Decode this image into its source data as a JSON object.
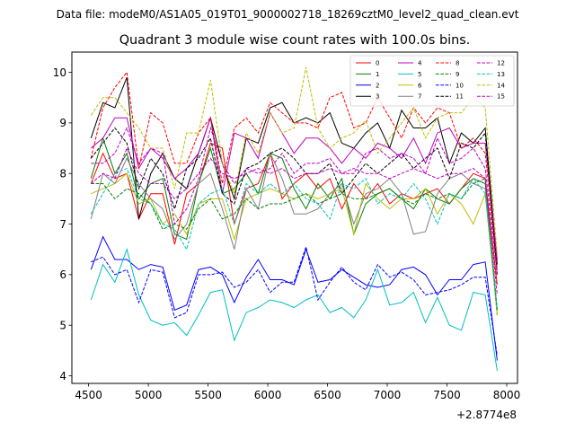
{
  "chart_data": {
    "type": "line",
    "suptitle": "Data file: modeM0/AS1A05_019T01_9000002718_18269cztM0_level2_quad_clean.evt",
    "title": "Quadrant 3 module wise count rates with 100.0s bins.",
    "xlabel": "",
    "ylabel": "",
    "x_offset_label": "+2.8774e8",
    "xlim": [
      4360,
      8090
    ],
    "ylim": [
      3.85,
      10.4
    ],
    "xticks": [
      4500,
      5000,
      5500,
      6000,
      6500,
      7000,
      7500,
      8000
    ],
    "yticks": [
      4,
      5,
      6,
      7,
      8,
      9,
      10
    ],
    "x": [
      4520,
      4620,
      4720,
      4820,
      4920,
      5020,
      5120,
      5220,
      5320,
      5420,
      5520,
      5620,
      5720,
      5820,
      5920,
      6020,
      6120,
      6220,
      6320,
      6420,
      6520,
      6620,
      6720,
      6820,
      6920,
      7020,
      7120,
      7220,
      7320,
      7420,
      7520,
      7620,
      7720,
      7820,
      7920
    ],
    "series": [
      {
        "name": "0",
        "color": "#ff0000",
        "dash": false,
        "values": [
          7.8,
          8.4,
          7.9,
          8.0,
          7.1,
          7.6,
          7.6,
          6.6,
          7.6,
          7.8,
          8.6,
          8.5,
          7.0,
          7.7,
          7.8,
          8.4,
          7.5,
          7.8,
          8.0,
          7.7,
          7.9,
          7.3,
          7.8,
          7.5,
          7.8,
          7.4,
          7.6,
          7.5,
          7.6,
          7.7,
          7.4,
          7.7,
          8.0,
          7.9,
          5.8
        ]
      },
      {
        "name": "1",
        "color": "#008000",
        "dash": false,
        "values": [
          7.9,
          8.7,
          8.0,
          8.4,
          7.5,
          7.8,
          7.9,
          6.8,
          6.7,
          7.8,
          8.5,
          7.6,
          7.7,
          8.0,
          7.6,
          8.4,
          8.3,
          7.7,
          7.3,
          7.8,
          7.5,
          7.9,
          6.8,
          7.4,
          7.6,
          7.7,
          7.5,
          7.3,
          7.7,
          7.5,
          7.4,
          7.7,
          7.9,
          7.8,
          5.2
        ]
      },
      {
        "name": "2",
        "color": "#0000ff",
        "dash": false,
        "values": [
          6.1,
          6.75,
          6.3,
          6.3,
          6.1,
          6.2,
          6.15,
          5.3,
          5.4,
          6.1,
          6.15,
          6.0,
          5.45,
          5.95,
          6.3,
          5.9,
          5.9,
          5.8,
          6.5,
          5.85,
          5.9,
          6.1,
          5.95,
          5.8,
          5.75,
          5.8,
          6.1,
          6.15,
          6.0,
          5.6,
          5.9,
          5.9,
          6.2,
          6.25,
          4.3
        ]
      },
      {
        "name": "3",
        "color": "#000000",
        "dash": false,
        "values": [
          8.7,
          9.4,
          9.3,
          9.9,
          7.1,
          8.0,
          8.4,
          7.9,
          7.7,
          8.4,
          9.1,
          8.2,
          7.5,
          8.7,
          8.6,
          9.3,
          9.4,
          9.0,
          9.1,
          9.0,
          9.2,
          8.6,
          8.5,
          8.8,
          9.0,
          8.5,
          9.25,
          8.9,
          8.9,
          9.1,
          8.2,
          8.8,
          8.6,
          8.9,
          6.2
        ]
      },
      {
        "name": "4",
        "color": "#bf00bf",
        "dash": false,
        "values": [
          8.5,
          8.7,
          9.1,
          9.1,
          8.1,
          8.5,
          8.3,
          7.9,
          8.1,
          8.4,
          9.1,
          7.6,
          8.8,
          8.7,
          8.3,
          9.2,
          8.8,
          8.4,
          8.7,
          8.7,
          8.5,
          8.2,
          8.5,
          8.3,
          8.6,
          8.5,
          8.3,
          8.7,
          8.2,
          8.8,
          8.9,
          8.5,
          8.6,
          8.6,
          6.3
        ]
      },
      {
        "name": "5",
        "color": "#00bfbf",
        "dash": false,
        "values": [
          5.5,
          6.2,
          5.85,
          6.5,
          5.6,
          5.1,
          5.0,
          5.05,
          4.8,
          5.2,
          5.65,
          5.7,
          4.7,
          5.25,
          5.35,
          5.5,
          5.45,
          5.35,
          5.5,
          5.6,
          5.25,
          5.35,
          5.15,
          5.5,
          6.1,
          5.4,
          5.45,
          5.65,
          5.05,
          5.55,
          5.0,
          4.9,
          5.65,
          5.6,
          4.1
        ]
      },
      {
        "name": "6",
        "color": "#bfbf00",
        "dash": false,
        "values": [
          7.6,
          7.7,
          7.8,
          8.0,
          7.4,
          7.5,
          7.0,
          7.2,
          6.8,
          7.4,
          7.5,
          7.5,
          6.7,
          7.5,
          7.6,
          7.7,
          7.6,
          7.5,
          7.6,
          7.5,
          7.6,
          7.7,
          6.8,
          7.8,
          7.5,
          7.3,
          7.5,
          7.5,
          7.7,
          7.2,
          7.6,
          7.4,
          7.0,
          7.6,
          5.2
        ]
      },
      {
        "name": "7",
        "color": "#808080",
        "dash": false,
        "values": [
          7.1,
          8.0,
          7.8,
          8.3,
          7.8,
          7.5,
          7.3,
          6.7,
          7.0,
          7.8,
          8.0,
          7.3,
          6.5,
          7.7,
          7.3,
          8.4,
          7.9,
          7.2,
          7.2,
          7.3,
          7.6,
          7.8,
          7.0,
          7.6,
          7.7,
          7.9,
          7.6,
          6.8,
          6.85,
          7.6,
          7.9,
          8.0,
          7.8,
          7.7,
          5.3
        ]
      },
      {
        "name": "8",
        "color": "#ff0000",
        "dash": true,
        "values": [
          8.3,
          9.3,
          9.7,
          10.0,
          8.1,
          9.2,
          9.0,
          8.2,
          8.2,
          8.8,
          9.1,
          7.8,
          8.9,
          9.1,
          8.8,
          9.4,
          9.2,
          9.0,
          9.0,
          8.9,
          9.5,
          9.6,
          8.9,
          9.0,
          9.5,
          9.1,
          8.7,
          9.3,
          9.0,
          9.3,
          9.2,
          8.5,
          8.7,
          8.4,
          6.1
        ]
      },
      {
        "name": "9",
        "color": "#008000",
        "dash": true,
        "values": [
          7.8,
          7.8,
          7.5,
          7.7,
          7.6,
          7.4,
          6.9,
          7.0,
          6.9,
          7.3,
          7.5,
          7.1,
          7.2,
          7.5,
          7.3,
          7.4,
          7.4,
          7.5,
          7.6,
          7.4,
          7.5,
          7.6,
          7.5,
          7.5,
          7.6,
          7.7,
          7.5,
          7.4,
          7.6,
          7.5,
          7.6,
          7.5,
          7.8,
          7.9,
          5.3
        ]
      },
      {
        "name": "10",
        "color": "#0000ff",
        "dash": true,
        "values": [
          6.25,
          6.35,
          6.0,
          6.1,
          5.45,
          6.1,
          6.05,
          5.15,
          5.25,
          6.0,
          6.0,
          6.05,
          5.75,
          5.85,
          6.1,
          5.65,
          5.85,
          5.85,
          6.55,
          5.5,
          5.85,
          6.15,
          5.85,
          5.7,
          6.2,
          5.95,
          6.05,
          5.9,
          5.6,
          5.65,
          5.7,
          5.8,
          5.95,
          5.95,
          4.4
        ]
      },
      {
        "name": "11",
        "color": "#000000",
        "dash": true,
        "values": [
          8.3,
          8.6,
          8.9,
          8.6,
          7.7,
          8.3,
          8.0,
          7.3,
          8.1,
          8.3,
          8.7,
          7.6,
          7.4,
          8.1,
          8.2,
          8.4,
          8.5,
          8.3,
          8.0,
          8.0,
          8.2,
          7.6,
          7.9,
          8.2,
          8.0,
          8.2,
          8.4,
          8.1,
          8.3,
          8.5,
          7.9,
          8.6,
          8.5,
          8.8,
          6.0
        ]
      },
      {
        "name": "12",
        "color": "#bf00bf",
        "dash": true,
        "values": [
          8.2,
          8.2,
          8.4,
          8.9,
          8.2,
          8.5,
          8.4,
          7.0,
          7.3,
          7.9,
          8.9,
          8.2,
          7.8,
          8.1,
          8.0,
          8.1,
          8.4,
          8.0,
          8.2,
          8.2,
          8.3,
          8.0,
          8.0,
          8.4,
          8.5,
          8.3,
          8.4,
          8.3,
          8.0,
          8.7,
          8.2,
          8.3,
          8.5,
          8.1,
          6.0
        ]
      },
      {
        "name": "13",
        "color": "#00bfbf",
        "dash": true,
        "values": [
          7.2,
          7.6,
          8.0,
          8.1,
          7.5,
          7.4,
          7.0,
          6.9,
          6.5,
          7.4,
          7.6,
          7.7,
          7.0,
          7.8,
          7.6,
          7.8,
          7.6,
          7.8,
          7.5,
          7.4,
          7.1,
          7.8,
          7.7,
          7.9,
          7.4,
          7.6,
          7.5,
          7.8,
          7.5,
          7.0,
          7.6,
          7.5,
          7.9,
          7.6,
          5.3
        ]
      },
      {
        "name": "14",
        "color": "#bfbf00",
        "dash": true,
        "values": [
          9.15,
          9.5,
          9.5,
          9.2,
          8.9,
          8.5,
          8.5,
          7.7,
          8.8,
          8.8,
          9.85,
          8.2,
          7.6,
          8.8,
          8.4,
          9.2,
          8.8,
          8.9,
          10.1,
          8.9,
          8.5,
          8.7,
          8.8,
          9.05,
          8.4,
          8.7,
          9.0,
          9.3,
          8.7,
          9.1,
          9.2,
          9.2,
          9.5,
          9.3,
          6.4
        ]
      },
      {
        "name": "15",
        "color": "#bf00bf",
        "dash": true,
        "values": [
          7.8,
          8.0,
          7.9,
          8.5,
          8.0,
          7.8,
          7.8,
          7.5,
          7.7,
          8.0,
          8.3,
          8.0,
          7.9,
          8.0,
          8.1,
          8.0,
          8.1,
          7.9,
          8.0,
          8.0,
          8.1,
          8.0,
          8.1,
          8.0,
          8.0,
          7.9,
          8.0,
          8.1,
          8.0,
          7.9,
          8.0,
          8.0,
          8.1,
          7.9,
          5.6
        ]
      }
    ],
    "legend": {
      "placement": "top-right",
      "columns": 4
    }
  }
}
